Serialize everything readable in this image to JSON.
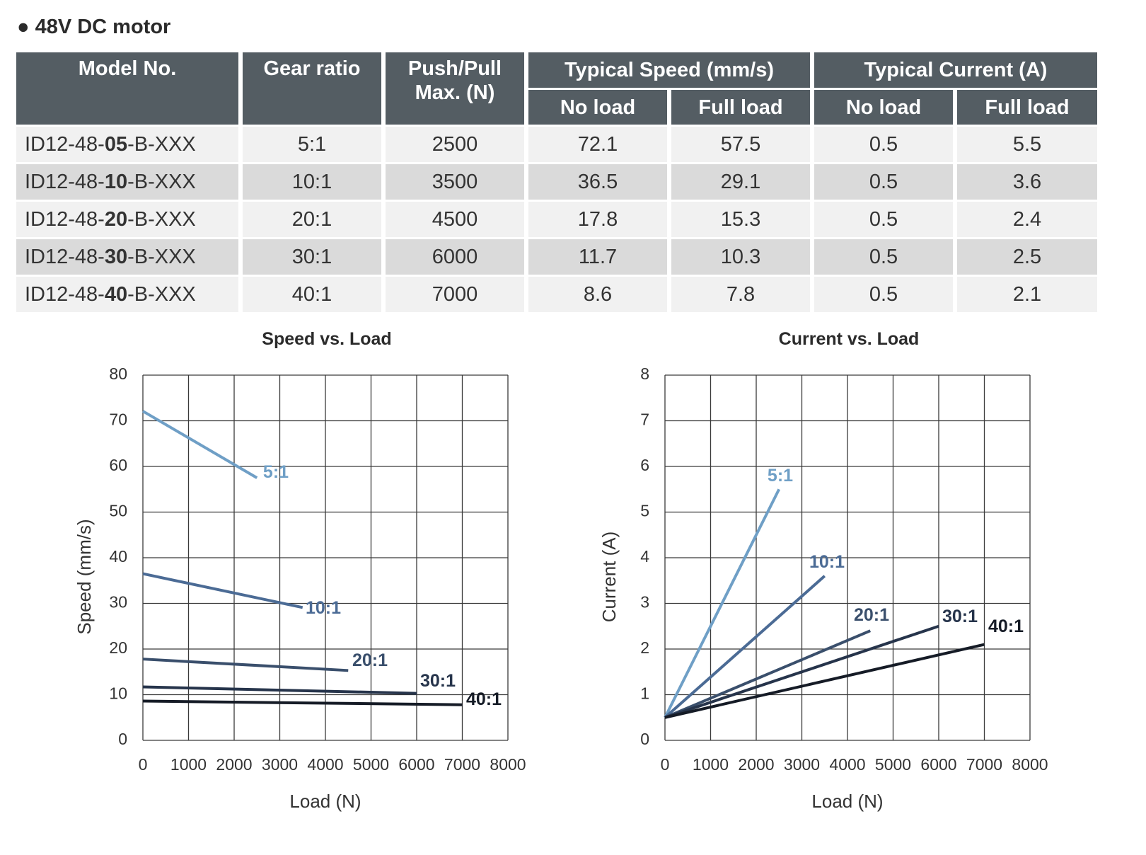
{
  "section_title": "● 48V DC motor",
  "table": {
    "headers": {
      "model": "Model No.",
      "gear": "Gear ratio",
      "push_pull": "Push/Pull\nMax. (N)",
      "speed_group": "Typical Speed (mm/s)",
      "current_group": "Typical Current (A)",
      "no_load": "No load",
      "full_load": "Full load"
    },
    "rows": [
      {
        "model_prefix": "ID12-48-",
        "model_bold": "05",
        "model_suffix": "-B-XXX",
        "gear": "5:1",
        "push_pull": "2500",
        "speed_no_load": "72.1",
        "speed_full_load": "57.5",
        "current_no_load": "0.5",
        "current_full_load": "5.5"
      },
      {
        "model_prefix": "ID12-48-",
        "model_bold": "10",
        "model_suffix": "-B-XXX",
        "gear": "10:1",
        "push_pull": "3500",
        "speed_no_load": "36.5",
        "speed_full_load": "29.1",
        "current_no_load": "0.5",
        "current_full_load": "3.6"
      },
      {
        "model_prefix": "ID12-48-",
        "model_bold": "20",
        "model_suffix": "-B-XXX",
        "gear": "20:1",
        "push_pull": "4500",
        "speed_no_load": "17.8",
        "speed_full_load": "15.3",
        "current_no_load": "0.5",
        "current_full_load": "2.4"
      },
      {
        "model_prefix": "ID12-48-",
        "model_bold": "30",
        "model_suffix": "-B-XXX",
        "gear": "30:1",
        "push_pull": "6000",
        "speed_no_load": "11.7",
        "speed_full_load": "10.3",
        "current_no_load": "0.5",
        "current_full_load": "2.5"
      },
      {
        "model_prefix": "ID12-48-",
        "model_bold": "40",
        "model_suffix": "-B-XXX",
        "gear": "40:1",
        "push_pull": "7000",
        "speed_no_load": "8.6",
        "speed_full_load": "7.8",
        "current_no_load": "0.5",
        "current_full_load": "2.1"
      }
    ]
  },
  "colors": {
    "header_bg": "#545d63",
    "row_light": "#f1f1f1",
    "row_dark": "#dadada",
    "grid": "#3a3a3a"
  },
  "chart_data": [
    {
      "type": "line",
      "title": "Speed vs. Load",
      "xlabel": "Load (N)",
      "ylabel": "Speed (mm/s)",
      "xlim": [
        0,
        8000
      ],
      "ylim": [
        0,
        80
      ],
      "xticks": [
        0,
        1000,
        2000,
        3000,
        4000,
        5000,
        6000,
        7000,
        8000
      ],
      "yticks": [
        0,
        10,
        20,
        30,
        40,
        50,
        60,
        70,
        80
      ],
      "grid": true,
      "series": [
        {
          "name": "5:1",
          "color": "#6f9fc6",
          "x": [
            0,
            2500
          ],
          "y": [
            72.1,
            57.5
          ]
        },
        {
          "name": "10:1",
          "color": "#4b6b95",
          "x": [
            0,
            3500
          ],
          "y": [
            36.5,
            29.1
          ]
        },
        {
          "name": "20:1",
          "color": "#3a4f6c",
          "x": [
            0,
            4500
          ],
          "y": [
            17.8,
            15.3
          ]
        },
        {
          "name": "30:1",
          "color": "#26344b",
          "x": [
            0,
            6000
          ],
          "y": [
            11.7,
            10.3
          ]
        },
        {
          "name": "40:1",
          "color": "#151b26",
          "x": [
            0,
            7000
          ],
          "y": [
            8.6,
            7.8
          ]
        }
      ]
    },
    {
      "type": "line",
      "title": "Current  vs. Load",
      "xlabel": "Load (N)",
      "ylabel": "Current (A)",
      "xlim": [
        0,
        8000
      ],
      "ylim": [
        0,
        8
      ],
      "xticks": [
        0,
        1000,
        2000,
        3000,
        4000,
        5000,
        6000,
        7000,
        8000
      ],
      "yticks": [
        0,
        1,
        2,
        3,
        4,
        5,
        6,
        7,
        8
      ],
      "grid": true,
      "series": [
        {
          "name": "5:1",
          "color": "#6f9fc6",
          "x": [
            0,
            2500
          ],
          "y": [
            0.5,
            5.5
          ]
        },
        {
          "name": "10:1",
          "color": "#4b6b95",
          "x": [
            0,
            3500
          ],
          "y": [
            0.5,
            3.6
          ]
        },
        {
          "name": "20:1",
          "color": "#3a4f6c",
          "x": [
            0,
            4500
          ],
          "y": [
            0.5,
            2.4
          ]
        },
        {
          "name": "30:1",
          "color": "#26344b",
          "x": [
            0,
            6000
          ],
          "y": [
            0.5,
            2.5
          ]
        },
        {
          "name": "40:1",
          "color": "#151b26",
          "x": [
            0,
            7000
          ],
          "y": [
            0.5,
            2.1
          ]
        }
      ]
    }
  ]
}
